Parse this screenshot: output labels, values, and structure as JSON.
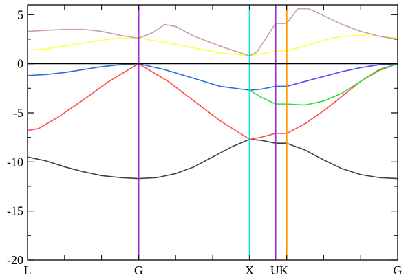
{
  "chart_data": {
    "type": "line",
    "title": "",
    "xlabel": "",
    "ylabel": "",
    "ylim": [
      -20,
      6
    ],
    "xlim": [
      0,
      1
    ],
    "y_ticks": [
      5,
      0,
      -5,
      -10,
      -15,
      -20
    ],
    "x_ticks": [
      {
        "label": "L",
        "x": 0.0
      },
      {
        "label": "G",
        "x": 0.3
      },
      {
        "label": "X",
        "x": 0.6
      },
      {
        "label": "UK",
        "x": 0.68
      },
      {
        "label": "G",
        "x": 1.0
      }
    ],
    "fermi_level": 0,
    "kpoint_markers": [
      {
        "x": 0.3,
        "color": "#9c2bd1"
      },
      {
        "x": 0.6,
        "color": "#00e0e0"
      },
      {
        "x": 0.67,
        "color": "#9c2bd1"
      },
      {
        "x": 0.7,
        "color": "#ff9900"
      }
    ],
    "series": [
      {
        "color": "#404040",
        "x": [
          0,
          0.05,
          0.1,
          0.15,
          0.2,
          0.25,
          0.3,
          0.35,
          0.4,
          0.45,
          0.5,
          0.55,
          0.6,
          0.63,
          0.67,
          0.7,
          0.75,
          0.8,
          0.85,
          0.9,
          0.95,
          1.0
        ],
        "values": [
          -9.5,
          -9.9,
          -10.5,
          -11.0,
          -11.4,
          -11.6,
          -11.7,
          -11.6,
          -11.2,
          -10.5,
          -9.5,
          -8.5,
          -7.7,
          -7.8,
          -8.1,
          -8.1,
          -8.8,
          -9.8,
          -10.7,
          -11.3,
          -11.6,
          -11.7
        ]
      },
      {
        "color": "#ff4b4b",
        "x": [
          0,
          0.03,
          0.08,
          0.15,
          0.22,
          0.3,
          0.38,
          0.45,
          0.52,
          0.6,
          0.63,
          0.67,
          0.7,
          0.75,
          0.8,
          0.85,
          0.9,
          0.95,
          1.0
        ],
        "values": [
          -6.8,
          -6.6,
          -5.5,
          -3.7,
          -1.8,
          0,
          -1.8,
          -3.8,
          -5.8,
          -7.7,
          -7.5,
          -7.1,
          -7.1,
          -6.1,
          -4.8,
          -3.3,
          -1.8,
          -0.6,
          0
        ]
      },
      {
        "color": "#2b6fd6",
        "x": [
          0,
          0.05,
          0.1,
          0.15,
          0.2,
          0.25,
          0.3,
          0.37,
          0.45,
          0.52,
          0.6,
          0.63,
          0.67,
          0.7
        ],
        "values": [
          -1.2,
          -1.1,
          -0.9,
          -0.6,
          -0.3,
          -0.1,
          0,
          -0.6,
          -1.5,
          -2.3,
          -2.7,
          -2.6,
          -2.3,
          -2.3
        ]
      },
      {
        "color": "#4d4dff",
        "x": [
          0.7,
          0.75,
          0.8,
          0.85,
          0.9,
          0.95,
          1.0
        ],
        "values": [
          -2.3,
          -1.8,
          -1.3,
          -0.8,
          -0.4,
          -0.1,
          0
        ]
      },
      {
        "color": "#33dd33",
        "x": [
          0.6,
          0.63,
          0.67,
          0.7,
          0.75,
          0.8,
          0.85,
          0.9,
          0.95,
          1.0
        ],
        "values": [
          -2.7,
          -3.4,
          -4.1,
          -4.1,
          -4.2,
          -3.8,
          -3.0,
          -1.8,
          -0.7,
          0
        ]
      },
      {
        "color": "#ffff4d",
        "x": [
          0,
          0.05,
          0.1,
          0.15,
          0.2,
          0.25,
          0.3,
          0.37,
          0.45,
          0.52,
          0.6,
          0.63,
          0.67,
          0.7,
          0.75,
          0.8,
          0.85,
          0.9,
          0.95,
          1.0
        ],
        "values": [
          1.4,
          1.5,
          1.8,
          2.1,
          2.4,
          2.6,
          2.6,
          2.2,
          1.6,
          1.1,
          0.8,
          1.0,
          1.3,
          1.3,
          1.8,
          2.4,
          2.8,
          2.9,
          2.8,
          2.6
        ]
      },
      {
        "color": "#c8a0a0",
        "x": [
          0,
          0.05,
          0.1,
          0.15,
          0.2,
          0.25,
          0.3,
          0.34,
          0.37,
          0.4,
          0.45,
          0.52,
          0.6,
          0.62,
          0.67,
          0.7,
          0.73,
          0.76,
          0.8,
          0.85,
          0.9,
          0.95,
          1.0
        ],
        "values": [
          3.3,
          3.4,
          3.5,
          3.5,
          3.3,
          2.9,
          2.6,
          3.2,
          4.0,
          3.8,
          2.8,
          1.8,
          0.8,
          1.2,
          4.1,
          4.1,
          5.6,
          5.6,
          4.9,
          4.0,
          3.3,
          2.8,
          2.5
        ]
      }
    ]
  }
}
